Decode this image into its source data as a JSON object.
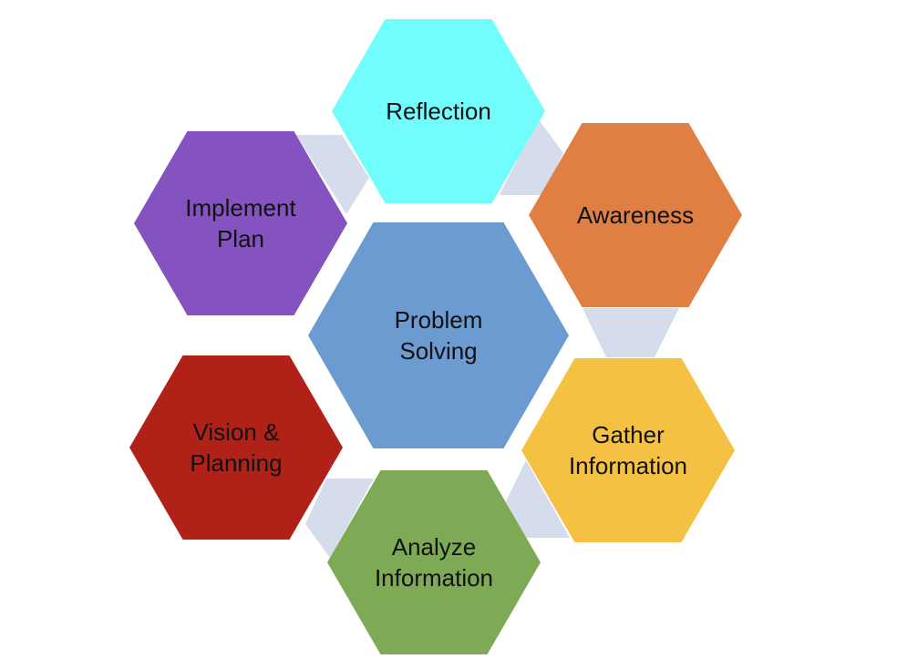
{
  "diagram": {
    "center": {
      "label_lines": [
        "Problem",
        "Solving"
      ],
      "color": "#6b9bd1"
    },
    "nodes": [
      {
        "id": "reflection",
        "label_lines": [
          "Reflection"
        ],
        "color": "#72fdfd"
      },
      {
        "id": "awareness",
        "label_lines": [
          "Awareness"
        ],
        "color": "#e07f43"
      },
      {
        "id": "gather-information",
        "label_lines": [
          "Gather",
          "Information"
        ],
        "color": "#f5c143"
      },
      {
        "id": "analyze-information",
        "label_lines": [
          "Analyze",
          "Information"
        ],
        "color": "#7faa55"
      },
      {
        "id": "vision-planning",
        "label_lines": [
          "Vision &",
          "Planning"
        ],
        "color": "#b02218"
      },
      {
        "id": "implement-plan",
        "label_lines": [
          "Implement",
          "Plan"
        ],
        "color": "#8453c0"
      }
    ],
    "connector_color": "#d5dceb"
  }
}
